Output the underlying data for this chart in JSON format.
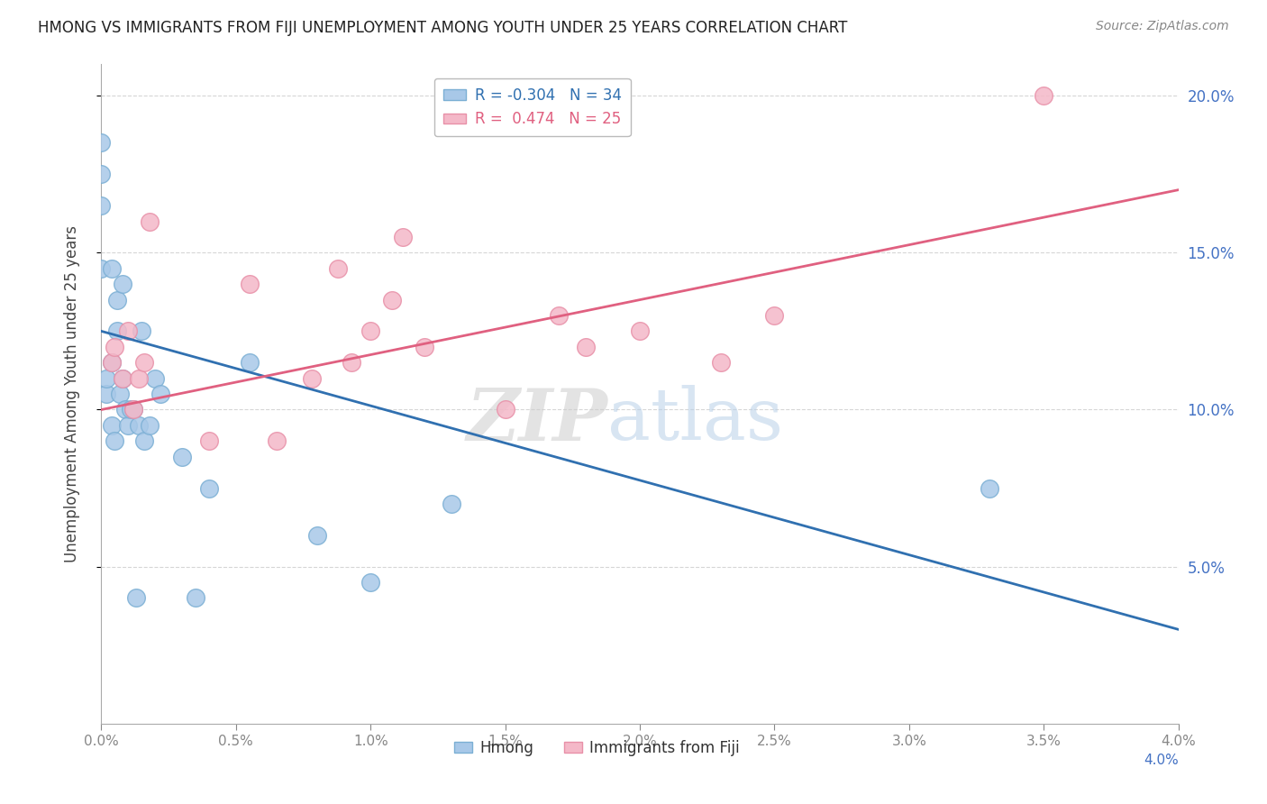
{
  "title": "HMONG VS IMMIGRANTS FROM FIJI UNEMPLOYMENT AMONG YOUTH UNDER 25 YEARS CORRELATION CHART",
  "source": "Source: ZipAtlas.com",
  "ylabel": "Unemployment Among Youth under 25 years",
  "legend_label_1": "Hmong",
  "legend_label_2": "Immigrants from Fiji",
  "R1": -0.304,
  "N1": 34,
  "R2": 0.474,
  "N2": 25,
  "color_blue": "#a8c8e8",
  "color_blue_edge": "#7bafd4",
  "color_pink": "#f4b8c8",
  "color_pink_edge": "#e890a8",
  "line_color_blue": "#3070b0",
  "line_color_pink": "#e06080",
  "xmin": 0.0,
  "xmax": 4.0,
  "ymin": 0.0,
  "ymax": 21.0,
  "yticks": [
    5.0,
    10.0,
    15.0,
    20.0
  ],
  "xticks": [
    0.0,
    0.5,
    1.0,
    1.5,
    2.0,
    2.5,
    3.0,
    3.5,
    4.0
  ],
  "blue_line_x0": 0.0,
  "blue_line_y0": 12.5,
  "blue_line_x1": 4.0,
  "blue_line_y1": 3.0,
  "pink_line_x0": 0.0,
  "pink_line_y0": 10.0,
  "pink_line_x1": 4.0,
  "pink_line_y1": 17.0,
  "blue_scatter_x": [
    0.0,
    0.0,
    0.0,
    0.0,
    0.02,
    0.02,
    0.04,
    0.04,
    0.04,
    0.05,
    0.06,
    0.06,
    0.07,
    0.08,
    0.08,
    0.09,
    0.1,
    0.11,
    0.12,
    0.13,
    0.14,
    0.15,
    0.16,
    0.18,
    0.2,
    0.22,
    0.3,
    0.35,
    0.4,
    0.55,
    0.8,
    1.0,
    1.3,
    3.3
  ],
  "blue_scatter_y": [
    14.5,
    16.5,
    17.5,
    18.5,
    10.5,
    11.0,
    9.5,
    11.5,
    14.5,
    9.0,
    12.5,
    13.5,
    10.5,
    11.0,
    14.0,
    10.0,
    9.5,
    10.0,
    10.0,
    4.0,
    9.5,
    12.5,
    9.0,
    9.5,
    11.0,
    10.5,
    8.5,
    4.0,
    7.5,
    11.5,
    6.0,
    4.5,
    7.0,
    7.5
  ],
  "pink_scatter_x": [
    0.04,
    0.05,
    0.08,
    0.1,
    0.12,
    0.14,
    0.16,
    0.18,
    0.4,
    0.55,
    0.65,
    0.78,
    0.88,
    0.93,
    1.0,
    1.08,
    1.12,
    1.2,
    1.5,
    1.7,
    1.8,
    2.0,
    2.3,
    2.5,
    3.5
  ],
  "pink_scatter_y": [
    11.5,
    12.0,
    11.0,
    12.5,
    10.0,
    11.0,
    11.5,
    16.0,
    9.0,
    14.0,
    9.0,
    11.0,
    14.5,
    11.5,
    12.5,
    13.5,
    15.5,
    12.0,
    10.0,
    13.0,
    12.0,
    12.5,
    11.5,
    13.0,
    20.0
  ],
  "watermark_zip": "ZIP",
  "watermark_atlas": "atlas",
  "background_color": "#ffffff"
}
